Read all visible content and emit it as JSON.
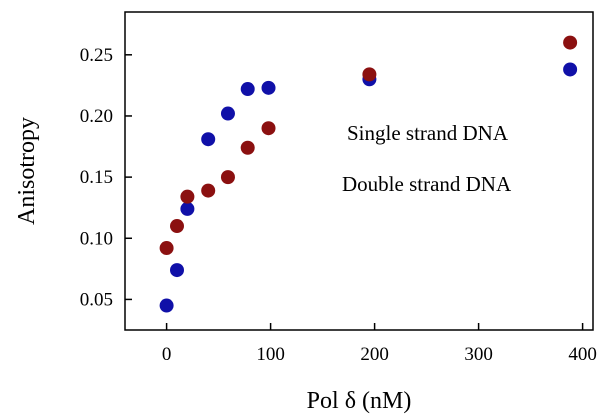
{
  "chart_data": {
    "type": "scatter",
    "title": "",
    "xlabel": "Pol δ (nM)",
    "ylabel": "Anisotropy",
    "xlim": [
      -40,
      410
    ],
    "ylim": [
      0.025,
      0.285
    ],
    "xticks": [
      0,
      100,
      200,
      300,
      400
    ],
    "xtick_labels": [
      "0",
      "100",
      "200",
      "300",
      "400"
    ],
    "yticks": [
      0.05,
      0.1,
      0.15,
      0.2,
      0.25
    ],
    "ytick_labels": [
      "0.05",
      "0.10",
      "0.15",
      "0.20",
      "0.25"
    ],
    "grid": false,
    "legend_position": "center-right",
    "series": [
      {
        "name": "Single strand DNA",
        "color": "#1010a8",
        "points": [
          [
            0,
            0.045
          ],
          [
            10,
            0.074
          ],
          [
            20,
            0.124
          ],
          [
            40,
            0.181
          ],
          [
            59,
            0.202
          ],
          [
            78,
            0.222
          ],
          [
            98,
            0.223
          ],
          [
            195,
            0.23
          ],
          [
            388,
            0.238
          ]
        ]
      },
      {
        "name": "Double strand DNA",
        "color": "#8b1010",
        "points": [
          [
            0,
            0.092
          ],
          [
            10,
            0.11
          ],
          [
            20,
            0.134
          ],
          [
            40,
            0.139
          ],
          [
            59,
            0.15
          ],
          [
            78,
            0.174
          ],
          [
            98,
            0.19
          ],
          [
            195,
            0.234
          ],
          [
            388,
            0.26
          ]
        ]
      }
    ]
  }
}
